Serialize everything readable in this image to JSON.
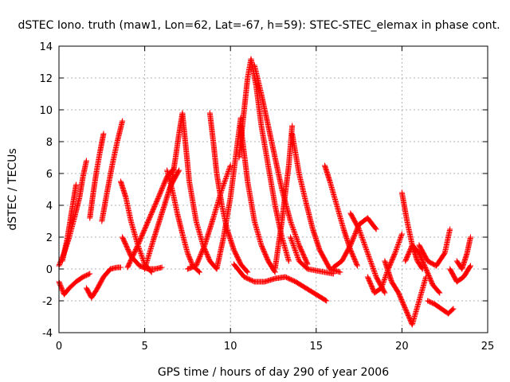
{
  "chart_data": {
    "type": "scatter",
    "title": "dSTEC Iono. truth (maw1, Lon=62, Lat=-67, h=59): STEC-STEC_elemax in phase cont.",
    "xlabel": "GPS time / hours of day 290 of year 2006",
    "ylabel": "dSTEC  / TECUs",
    "xlim": [
      0,
      25
    ],
    "ylim": [
      -4,
      14
    ],
    "xticks": [
      "0",
      "5",
      "10",
      "15",
      "20",
      "25"
    ],
    "yticks": [
      "-4",
      "-2",
      "0",
      "2",
      "4",
      "6",
      "8",
      "10",
      "12",
      "14"
    ],
    "grid": true,
    "marker": "+",
    "color": "#ff0000",
    "series": [
      {
        "x": [
          0.0,
          0.3,
          0.6,
          1.0,
          1.4,
          1.8
        ],
        "y": [
          -0.8,
          -1.6,
          -1.2,
          -0.8,
          -0.5,
          -0.3
        ]
      },
      {
        "x": [
          0.0,
          0.3,
          0.6,
          0.9,
          1.2,
          1.4,
          1.6
        ],
        "y": [
          0.2,
          1.0,
          2.0,
          3.2,
          4.5,
          5.8,
          6.8
        ]
      },
      {
        "x": [
          0.2,
          0.5,
          0.8,
          1.0
        ],
        "y": [
          0.5,
          2.0,
          4.0,
          5.3
        ]
      },
      {
        "x": [
          1.6,
          1.9,
          2.2,
          2.6,
          3.0,
          3.4,
          3.6
        ],
        "y": [
          -1.2,
          -1.8,
          -1.3,
          -0.5,
          0.0,
          0.1,
          0.1
        ]
      },
      {
        "x": [
          1.8,
          2.0,
          2.2,
          2.4,
          2.6
        ],
        "y": [
          3.2,
          4.8,
          6.2,
          7.4,
          8.5
        ]
      },
      {
        "x": [
          2.5,
          2.8,
          3.1,
          3.4,
          3.7
        ],
        "y": [
          3.0,
          4.8,
          6.5,
          8.0,
          9.3
        ]
      },
      {
        "x": [
          3.6,
          3.9,
          4.2,
          4.6,
          5.0,
          5.4
        ],
        "y": [
          5.5,
          4.5,
          3.0,
          1.5,
          0.3,
          -0.2
        ]
      },
      {
        "x": [
          3.7,
          4.2,
          4.7,
          5.2,
          5.6,
          6.0
        ],
        "y": [
          2.0,
          0.8,
          0.2,
          0.0,
          0.0,
          0.1
        ]
      },
      {
        "x": [
          4.0,
          4.6,
          5.2,
          5.8,
          6.3,
          6.7
        ],
        "y": [
          0.1,
          1.5,
          3.0,
          4.5,
          5.8,
          6.3
        ]
      },
      {
        "x": [
          5.0,
          5.5,
          6.0,
          6.5,
          7.0
        ],
        "y": [
          0.0,
          1.8,
          3.5,
          5.2,
          6.2
        ]
      },
      {
        "x": [
          6.3,
          6.6,
          6.9,
          7.2,
          7.5,
          7.8,
          8.2
        ],
        "y": [
          6.2,
          5.0,
          3.5,
          2.2,
          1.0,
          0.2,
          -0.2
        ]
      },
      {
        "x": [
          6.5,
          6.8,
          7.0,
          7.2
        ],
        "y": [
          5.0,
          7.0,
          8.5,
          9.8
        ]
      },
      {
        "x": [
          7.2,
          7.6,
          8.0,
          8.4,
          8.8,
          9.2
        ],
        "y": [
          9.8,
          5.5,
          3.0,
          1.5,
          0.5,
          0.0
        ]
      },
      {
        "x": [
          7.5,
          8.0,
          8.5,
          9.0,
          9.5,
          10.0
        ],
        "y": [
          0.0,
          0.2,
          1.5,
          3.2,
          5.0,
          6.5
        ]
      },
      {
        "x": [
          8.8,
          9.0,
          9.2,
          9.5,
          9.8,
          10.2,
          10.6,
          11.0
        ],
        "y": [
          9.8,
          8.0,
          6.0,
          4.0,
          2.5,
          1.2,
          0.3,
          -0.2
        ]
      },
      {
        "x": [
          9.2,
          9.6,
          10.0,
          10.3,
          10.6
        ],
        "y": [
          0.0,
          2.0,
          4.5,
          7.0,
          9.5
        ]
      },
      {
        "x": [
          10.6,
          11.0,
          11.4,
          11.8,
          12.2,
          12.6
        ],
        "y": [
          9.0,
          5.5,
          3.0,
          1.5,
          0.5,
          -0.2
        ]
      },
      {
        "x": [
          10.5,
          10.8,
          11.0,
          11.2,
          11.5,
          11.8,
          12.2,
          12.6,
          13.0,
          13.4
        ],
        "y": [
          7.0,
          10.0,
          12.0,
          13.2,
          11.5,
          9.0,
          6.5,
          4.0,
          2.0,
          0.5
        ]
      },
      {
        "x": [
          11.4,
          11.8,
          12.2,
          12.6,
          13.0,
          13.5,
          14.0,
          14.5
        ],
        "y": [
          12.8,
          11.0,
          9.0,
          7.0,
          5.0,
          3.0,
          1.5,
          0.3
        ]
      },
      {
        "x": [
          10.2,
          10.8,
          11.4,
          12.0,
          12.6,
          13.2,
          13.8,
          14.4,
          15.0,
          15.6
        ],
        "y": [
          0.3,
          -0.5,
          -0.8,
          -0.8,
          -0.6,
          -0.5,
          -0.8,
          -1.2,
          -1.6,
          -2.0
        ]
      },
      {
        "x": [
          12.6,
          13.0,
          13.4,
          13.6
        ],
        "y": [
          0.0,
          3.0,
          6.5,
          9.0
        ]
      },
      {
        "x": [
          13.6,
          14.0,
          14.4,
          14.8,
          15.2,
          15.8,
          16.4
        ],
        "y": [
          8.5,
          6.0,
          4.2,
          2.5,
          1.2,
          0.0,
          -0.2
        ]
      },
      {
        "x": [
          13.5,
          14.0,
          14.5,
          15.0,
          15.5,
          16.0
        ],
        "y": [
          2.0,
          0.5,
          0.0,
          -0.1,
          -0.2,
          -0.3
        ]
      },
      {
        "x": [
          15.5,
          15.8,
          16.2,
          16.6,
          17.0,
          17.4
        ],
        "y": [
          6.5,
          5.5,
          4.0,
          2.5,
          1.2,
          0.2
        ]
      },
      {
        "x": [
          16.0,
          16.5,
          17.0,
          17.5,
          18.0,
          18.5
        ],
        "y": [
          0.1,
          0.5,
          1.5,
          2.8,
          3.2,
          2.5
        ]
      },
      {
        "x": [
          17.0,
          17.5,
          18.0,
          18.5,
          19.0
        ],
        "y": [
          3.5,
          2.5,
          1.0,
          -0.5,
          -1.5
        ]
      },
      {
        "x": [
          18.0,
          18.4,
          18.8,
          19.2,
          19.6,
          20.0
        ],
        "y": [
          -0.5,
          -1.5,
          -1.2,
          0.0,
          1.0,
          2.2
        ]
      },
      {
        "x": [
          19.0,
          19.4,
          19.8,
          20.2,
          20.6,
          21.0,
          21.4
        ],
        "y": [
          0.5,
          -0.8,
          -1.5,
          -2.5,
          -3.5,
          -2.0,
          -0.5
        ]
      },
      {
        "x": [
          20.0,
          20.3,
          20.6,
          20.9,
          21.2
        ],
        "y": [
          4.8,
          3.0,
          1.5,
          0.5,
          0.0
        ]
      },
      {
        "x": [
          20.2,
          20.6,
          21.0,
          21.4,
          21.8,
          22.2
        ],
        "y": [
          0.5,
          1.5,
          1.0,
          0.0,
          -1.0,
          -1.5
        ]
      },
      {
        "x": [
          21.0,
          21.5,
          22.0,
          22.5,
          22.8
        ],
        "y": [
          1.5,
          0.5,
          0.2,
          1.0,
          2.5
        ]
      },
      {
        "x": [
          21.5,
          21.9,
          22.3,
          22.7,
          23.0
        ],
        "y": [
          -2.0,
          -2.2,
          -2.5,
          -2.8,
          -2.5
        ]
      },
      {
        "x": [
          22.8,
          23.2,
          23.6,
          24.0
        ],
        "y": [
          0.0,
          -0.8,
          -0.5,
          0.2
        ]
      },
      {
        "x": [
          23.2,
          23.5,
          23.8,
          24.0
        ],
        "y": [
          0.5,
          0.0,
          1.0,
          2.0
        ]
      }
    ]
  }
}
